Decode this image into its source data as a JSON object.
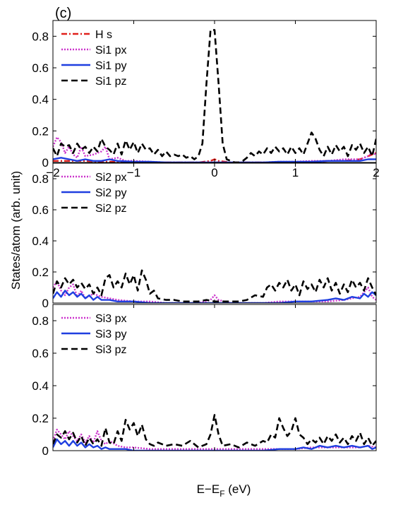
{
  "figure": {
    "panel_tag": "(c)",
    "ylabel": "States/atom (arb. unit)",
    "xlabel_main": "E−E",
    "xlabel_sub": "F",
    "xlabel_unit": " (eV)"
  },
  "chart_data": [
    {
      "type": "line",
      "xlim": [
        -2,
        2
      ],
      "ylim": [
        0,
        0.9
      ],
      "xticks": [
        -2,
        -1,
        0,
        1,
        2
      ],
      "yticks": [
        0,
        0.2,
        0.4,
        0.6,
        0.8
      ],
      "ytick_labels": [
        "0",
        "0.2",
        "0.4",
        "0.6",
        "0.8"
      ],
      "xtick_labels": [
        "−2",
        "−1",
        "0",
        "1",
        "2"
      ],
      "grid": false,
      "legend_position": "top-left",
      "series": [
        {
          "name": "H s",
          "color": "#e0201b",
          "dash": "8,3,2,3",
          "x": [
            -2,
            -1.8,
            -1.6,
            -1.4,
            -1.2,
            -1,
            -0.8,
            -0.6,
            -0.4,
            -0.2,
            -0.05,
            0,
            0.05,
            0.2,
            0.4,
            0.6,
            0.8,
            1,
            1.2,
            1.4,
            1.6,
            1.8,
            1.9,
            2
          ],
          "y": [
            0.01,
            0.01,
            0.01,
            0.005,
            0.005,
            0.005,
            0,
            0,
            0,
            0,
            0.01,
            0.02,
            0.01,
            0,
            0,
            0,
            0,
            0,
            0.005,
            0.01,
            0.01,
            0.02,
            0.04,
            0.06
          ]
        },
        {
          "name": "Si1 px",
          "color": "#cc33cc",
          "dash": "2,2",
          "x": [
            -2,
            -1.95,
            -1.9,
            -1.85,
            -1.8,
            -1.75,
            -1.7,
            -1.65,
            -1.6,
            -1.5,
            -1.4,
            -1.35,
            -1.3,
            -1.2,
            -1.1,
            -1,
            -0.8,
            -0.6,
            -0.4,
            -0.2,
            0,
            0.2,
            0.4,
            0.6,
            0.8,
            1,
            1.2,
            1.4,
            1.6,
            1.8,
            1.9,
            1.95,
            2
          ],
          "y": [
            0.1,
            0.16,
            0.13,
            0.06,
            0.1,
            0.05,
            0.03,
            0.1,
            0.04,
            0.05,
            0.07,
            0.1,
            0.02,
            0.03,
            0.01,
            0.01,
            0.005,
            0,
            0,
            0,
            0,
            0,
            0,
            0,
            0.005,
            0.005,
            0.01,
            0.01,
            0.02,
            0.02,
            0.04,
            0.06,
            0.05
          ]
        },
        {
          "name": "Si1 py",
          "color": "#1f3fe0",
          "dash": "",
          "x": [
            -2,
            -1.9,
            -1.8,
            -1.7,
            -1.6,
            -1.5,
            -1.4,
            -1.3,
            -1.2,
            -1,
            -0.8,
            -0.6,
            -0.4,
            -0.2,
            0,
            0.2,
            0.4,
            0.6,
            0.8,
            1,
            1.2,
            1.4,
            1.6,
            1.8,
            1.9,
            2
          ],
          "y": [
            0.02,
            0.03,
            0.02,
            0.01,
            0.02,
            0.01,
            0.01,
            0.02,
            0.01,
            0.005,
            0.005,
            0,
            0,
            0,
            0,
            0,
            0,
            0,
            0.005,
            0.005,
            0.005,
            0.01,
            0.01,
            0.01,
            0.02,
            0.02
          ]
        },
        {
          "name": "Si1 pz",
          "color": "#000000",
          "dash": "9,5",
          "x": [
            -2,
            -1.95,
            -1.9,
            -1.85,
            -1.8,
            -1.75,
            -1.7,
            -1.65,
            -1.6,
            -1.55,
            -1.5,
            -1.45,
            -1.4,
            -1.35,
            -1.3,
            -1.25,
            -1.2,
            -1.15,
            -1.1,
            -1.05,
            -1,
            -0.95,
            -0.9,
            -0.85,
            -0.8,
            -0.75,
            -0.7,
            -0.65,
            -0.6,
            -0.55,
            -0.5,
            -0.45,
            -0.4,
            -0.35,
            -0.3,
            -0.25,
            -0.2,
            -0.15,
            -0.1,
            -0.05,
            0,
            0.05,
            0.1,
            0.15,
            0.2,
            0.25,
            0.3,
            0.35,
            0.4,
            0.45,
            0.5,
            0.55,
            0.6,
            0.65,
            0.7,
            0.75,
            0.8,
            0.85,
            0.9,
            0.95,
            1,
            1.05,
            1.1,
            1.15,
            1.2,
            1.25,
            1.3,
            1.35,
            1.4,
            1.45,
            1.5,
            1.55,
            1.6,
            1.65,
            1.7,
            1.75,
            1.8,
            1.85,
            1.9,
            1.95,
            2
          ],
          "y": [
            0.09,
            0.04,
            0.12,
            0.1,
            0.11,
            0.06,
            0.12,
            0.08,
            0.1,
            0.06,
            0.1,
            0.07,
            0.15,
            0.1,
            0.08,
            0.05,
            0.12,
            0.05,
            0.14,
            0.08,
            0.13,
            0.06,
            0.12,
            0.08,
            0.09,
            0.05,
            0.08,
            0.04,
            0.07,
            0.04,
            0.05,
            0.04,
            0.05,
            0.03,
            0.04,
            0.02,
            0.04,
            0.12,
            0.5,
            0.84,
            0.84,
            0.5,
            0.12,
            0.02,
            0.01,
            0,
            0,
            0.01,
            0.03,
            0.06,
            0.04,
            0.07,
            0.05,
            0.09,
            0.06,
            0.1,
            0.07,
            0.09,
            0.05,
            0.1,
            0.06,
            0.09,
            0.05,
            0.12,
            0.19,
            0.15,
            0.08,
            0.04,
            0.1,
            0.05,
            0.11,
            0.07,
            0.1,
            0.04,
            0.11,
            0.08,
            0.12,
            0.06,
            0.1,
            0.04,
            0.15
          ]
        }
      ]
    },
    {
      "type": "line",
      "xlim": [
        -2,
        2
      ],
      "ylim": [
        0,
        0.9
      ],
      "xticks": [
        -2,
        -1,
        0,
        1,
        2
      ],
      "yticks": [
        0,
        0.2,
        0.4,
        0.6,
        0.8
      ],
      "ytick_labels": [
        "0",
        "0.2",
        "0.4",
        "0.6",
        "0.8"
      ],
      "grid": false,
      "legend_position": "top-left",
      "series": [
        {
          "name": "Si2 px",
          "color": "#cc33cc",
          "dash": "2,2",
          "x": [
            -2,
            -1.95,
            -1.9,
            -1.85,
            -1.8,
            -1.75,
            -1.7,
            -1.65,
            -1.6,
            -1.5,
            -1.4,
            -1.3,
            -1.2,
            -1,
            -0.8,
            -0.6,
            -0.4,
            -0.2,
            -0.05,
            0,
            0.05,
            0.2,
            0.4,
            0.6,
            0.8,
            1,
            1.2,
            1.4,
            1.6,
            1.8,
            1.85,
            1.9,
            1.95,
            2
          ],
          "y": [
            0.1,
            0.14,
            0.08,
            0.05,
            0.1,
            0.12,
            0.04,
            0.08,
            0.03,
            0.06,
            0.04,
            0.03,
            0.02,
            0.01,
            0.01,
            0,
            0,
            0,
            0.02,
            0.05,
            0.02,
            0,
            0,
            0,
            0.01,
            0.01,
            0.01,
            0.01,
            0.02,
            0.04,
            0.07,
            0.1,
            0.04,
            0.02
          ]
        },
        {
          "name": "Si2 py",
          "color": "#1f3fe0",
          "dash": "",
          "x": [
            -2,
            -1.95,
            -1.9,
            -1.85,
            -1.8,
            -1.75,
            -1.7,
            -1.65,
            -1.6,
            -1.55,
            -1.5,
            -1.45,
            -1.4,
            -1.3,
            -1.2,
            -1.1,
            -1,
            -0.8,
            -0.6,
            -0.4,
            -0.2,
            0,
            0.2,
            0.4,
            0.6,
            0.8,
            1,
            1.2,
            1.4,
            1.5,
            1.6,
            1.7,
            1.8,
            1.85,
            1.9,
            1.95,
            2
          ],
          "y": [
            0.03,
            0.07,
            0.04,
            0.08,
            0.05,
            0.07,
            0.04,
            0.06,
            0.03,
            0.05,
            0.02,
            0.04,
            0.02,
            0.02,
            0.01,
            0.01,
            0.01,
            0,
            0,
            0,
            0,
            0,
            0,
            0,
            0,
            0,
            0.01,
            0.01,
            0.02,
            0.03,
            0.02,
            0.04,
            0.03,
            0.06,
            0.04,
            0.07,
            0.05
          ]
        },
        {
          "name": "Si2 pz",
          "color": "#000000",
          "dash": "9,5",
          "x": [
            -2,
            -1.95,
            -1.9,
            -1.85,
            -1.8,
            -1.75,
            -1.7,
            -1.65,
            -1.6,
            -1.55,
            -1.5,
            -1.45,
            -1.4,
            -1.35,
            -1.3,
            -1.25,
            -1.2,
            -1.15,
            -1.1,
            -1.05,
            -1,
            -0.95,
            -0.9,
            -0.85,
            -0.8,
            -0.75,
            -0.7,
            -0.6,
            -0.5,
            -0.4,
            -0.3,
            -0.2,
            -0.1,
            0,
            0.1,
            0.2,
            0.3,
            0.4,
            0.5,
            0.6,
            0.65,
            0.7,
            0.75,
            0.8,
            0.85,
            0.9,
            0.95,
            1,
            1.05,
            1.1,
            1.15,
            1.2,
            1.25,
            1.3,
            1.35,
            1.4,
            1.45,
            1.5,
            1.55,
            1.6,
            1.65,
            1.7,
            1.75,
            1.8,
            1.85,
            1.9,
            1.95,
            2
          ],
          "y": [
            0.06,
            0.14,
            0.1,
            0.16,
            0.12,
            0.15,
            0.1,
            0.13,
            0.09,
            0.12,
            0.06,
            0.1,
            0.05,
            0.16,
            0.18,
            0.1,
            0.14,
            0.1,
            0.19,
            0.12,
            0.18,
            0.08,
            0.21,
            0.15,
            0.06,
            0.08,
            0.03,
            0.02,
            0.02,
            0.01,
            0.01,
            0.01,
            0.02,
            0.01,
            0.01,
            0.01,
            0.01,
            0.02,
            0.05,
            0.04,
            0.1,
            0.12,
            0.08,
            0.13,
            0.1,
            0.15,
            0.08,
            0.12,
            0.05,
            0.14,
            0.09,
            0.12,
            0.07,
            0.15,
            0.1,
            0.16,
            0.08,
            0.13,
            0.06,
            0.12,
            0.07,
            0.15,
            0.1,
            0.13,
            0.08,
            0.16,
            0.1,
            0.05
          ]
        }
      ]
    },
    {
      "type": "line",
      "xlim": [
        -2,
        2
      ],
      "ylim": [
        0,
        0.9
      ],
      "xticks": [
        -2,
        -1,
        0,
        1,
        2
      ],
      "yticks": [
        0,
        0.2,
        0.4,
        0.6,
        0.8
      ],
      "ytick_labels": [
        "0",
        "0.2",
        "0.4",
        "0.6",
        "0.8"
      ],
      "grid": false,
      "legend_position": "top-left",
      "series": [
        {
          "name": "Si3 px",
          "color": "#cc33cc",
          "dash": "2,2",
          "x": [
            -2,
            -1.95,
            -1.9,
            -1.85,
            -1.8,
            -1.75,
            -1.7,
            -1.65,
            -1.6,
            -1.55,
            -1.5,
            -1.45,
            -1.4,
            -1.35,
            -1.3,
            -1.2,
            -1.1,
            -1,
            -0.8,
            -0.6,
            -0.4,
            -0.2,
            0,
            0.2,
            0.4,
            0.6,
            0.8,
            1,
            1.2,
            1.4,
            1.6,
            1.8,
            1.9,
            2
          ],
          "y": [
            0.06,
            0.13,
            0.1,
            0.07,
            0.12,
            0.09,
            0.06,
            0.1,
            0.05,
            0.09,
            0.05,
            0.12,
            0.06,
            0.04,
            0.06,
            0.03,
            0.02,
            0.02,
            0.01,
            0.01,
            0.01,
            0.01,
            0.01,
            0.01,
            0.01,
            0.01,
            0.01,
            0.01,
            0.02,
            0.02,
            0.02,
            0.02,
            0.03,
            0.02
          ]
        },
        {
          "name": "Si3 py",
          "color": "#1f3fe0",
          "dash": "",
          "x": [
            -2,
            -1.95,
            -1.9,
            -1.85,
            -1.8,
            -1.75,
            -1.7,
            -1.65,
            -1.6,
            -1.55,
            -1.5,
            -1.45,
            -1.4,
            -1.35,
            -1.3,
            -1.2,
            -1.1,
            -1,
            -0.8,
            -0.6,
            -0.4,
            -0.2,
            0,
            0.2,
            0.4,
            0.6,
            0.8,
            1,
            1.1,
            1.2,
            1.3,
            1.4,
            1.5,
            1.6,
            1.7,
            1.8,
            1.9,
            1.95,
            2
          ],
          "y": [
            0.02,
            0.07,
            0.04,
            0.06,
            0.03,
            0.06,
            0.03,
            0.05,
            0.02,
            0.04,
            0.02,
            0.03,
            0.01,
            0.02,
            0.01,
            0.01,
            0.01,
            0,
            0,
            0,
            0,
            0,
            0,
            0,
            0,
            0,
            0.01,
            0.01,
            0.02,
            0.01,
            0.03,
            0.02,
            0.03,
            0.02,
            0.03,
            0.02,
            0.03,
            0.01,
            0.02
          ]
        },
        {
          "name": "Si3 pz",
          "color": "#000000",
          "dash": "9,5",
          "x": [
            -2,
            -1.95,
            -1.9,
            -1.85,
            -1.8,
            -1.75,
            -1.7,
            -1.65,
            -1.6,
            -1.55,
            -1.5,
            -1.45,
            -1.4,
            -1.35,
            -1.3,
            -1.25,
            -1.2,
            -1.15,
            -1.1,
            -1.05,
            -1,
            -0.95,
            -0.9,
            -0.85,
            -0.8,
            -0.75,
            -0.7,
            -0.6,
            -0.5,
            -0.4,
            -0.3,
            -0.2,
            -0.1,
            -0.05,
            0,
            0.05,
            0.1,
            0.2,
            0.3,
            0.4,
            0.5,
            0.6,
            0.65,
            0.7,
            0.75,
            0.8,
            0.85,
            0.9,
            0.95,
            1,
            1.05,
            1.1,
            1.15,
            1.2,
            1.25,
            1.3,
            1.35,
            1.4,
            1.45,
            1.5,
            1.55,
            1.6,
            1.65,
            1.7,
            1.75,
            1.8,
            1.85,
            1.9,
            1.95,
            2
          ],
          "y": [
            0.04,
            0.1,
            0.08,
            0.12,
            0.07,
            0.11,
            0.05,
            0.09,
            0.03,
            0.08,
            0.04,
            0.07,
            0.03,
            0.14,
            0.05,
            0.04,
            0.12,
            0.06,
            0.19,
            0.13,
            0.17,
            0.09,
            0.16,
            0.07,
            0.04,
            0.03,
            0.05,
            0.03,
            0.04,
            0.03,
            0.06,
            0.02,
            0.04,
            0.1,
            0.22,
            0.1,
            0.03,
            0.04,
            0.02,
            0.05,
            0.03,
            0.06,
            0.05,
            0.1,
            0.08,
            0.2,
            0.14,
            0.09,
            0.12,
            0.2,
            0.1,
            0.08,
            0.04,
            0.07,
            0.05,
            0.08,
            0.04,
            0.09,
            0.06,
            0.1,
            0.05,
            0.08,
            0.04,
            0.09,
            0.06,
            0.11,
            0.04,
            0.08,
            0.03,
            0.06
          ]
        }
      ]
    }
  ]
}
